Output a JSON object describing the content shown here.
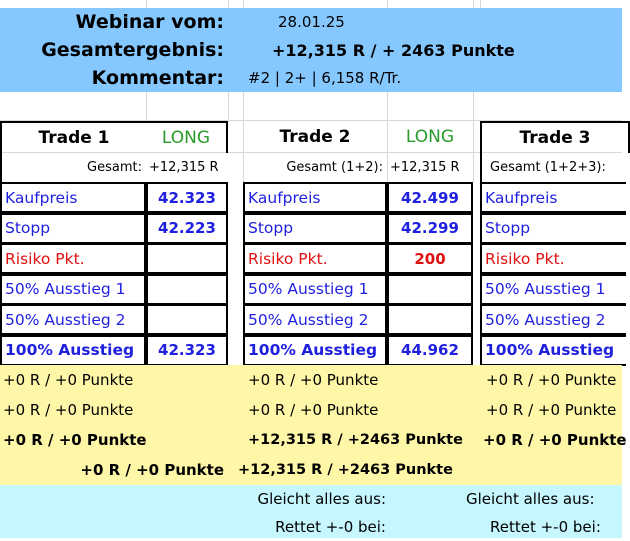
{
  "header": {
    "webinar_label": "Webinar vom:",
    "webinar_date": "28.01.25",
    "total_label": "Gesamtergebnis:",
    "total_value": "+12,315 R / + 2463 Punkte",
    "comment_label": "Kommentar:",
    "comment_value": "#2 | 2+  | 6,158 R/Tr."
  },
  "colors": {
    "header_bg": "#85c8ff",
    "result_bg": "#fff7a8",
    "footer_bg": "#c6f7ff",
    "label_blue": "#1f1fe0",
    "label_red": "#e01010",
    "long_green": "#2a9a2a"
  },
  "labels": {
    "kaufpreis": "Kaufpreis",
    "stopp": "Stopp",
    "risiko": "Risiko Pkt.",
    "ausstieg1": "50% Ausstieg 1",
    "ausstieg2": "50% Ausstieg 2",
    "ausstieg100": "100% Ausstieg"
  },
  "trades": [
    {
      "title": "Trade 1",
      "direction": "LONG",
      "gesamt_label": "Gesamt:",
      "gesamt_value": "+12,315 R",
      "kaufpreis": "42.323",
      "stopp": "42.223",
      "risiko": "",
      "ausstieg1": "",
      "ausstieg2": "",
      "ausstieg100": "42.323",
      "res1": "+0 R / +0 Punkte",
      "res2": "+0 R / +0 Punkte",
      "res3": "+0 R / +0 Punkte",
      "res4": "+0 R / +0 Punkte"
    },
    {
      "title": "Trade 2",
      "direction": "LONG",
      "gesamt_label": "Gesamt (1+2):",
      "gesamt_value": "+12,315 R",
      "kaufpreis": "42.499",
      "stopp": "42.299",
      "risiko": "200",
      "ausstieg1": "",
      "ausstieg2": "",
      "ausstieg100": "44.962",
      "res1": "+0 R / +0 Punkte",
      "res2": "+0 R / +0 Punkte",
      "res3": "+12,315 R / +2463 Punkte",
      "res4": "+12,315 R / +2463 Punkte",
      "even_label": "Gleicht alles aus:",
      "save_label": "Rettet +-0 bei:"
    },
    {
      "title": "Trade 3",
      "gesamt_label": "Gesamt (1+2+3):",
      "res1": "+0 R / +0 Punkte",
      "res2": "+0 R / +0 Punkte",
      "res3": "+0 R / +0 Punkte",
      "even_label": "Gleicht alles aus:",
      "save_label": "Rettet +-0 bei:"
    }
  ]
}
